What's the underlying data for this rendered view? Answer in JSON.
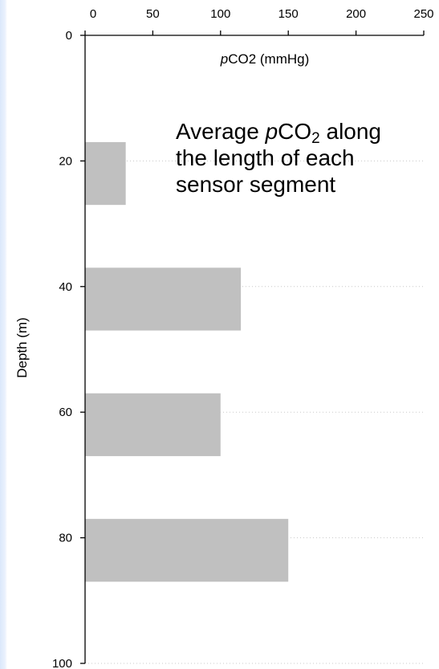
{
  "chart_data": {
    "type": "bar",
    "orientation": "horizontal",
    "xlabel": "pCO2 (mmHg)",
    "xlabel_parts": {
      "italic": "p",
      "rest": "CO2 (mmHg)"
    },
    "ylabel": "Depth (m)",
    "xlim": [
      0,
      250
    ],
    "ylim": [
      0,
      100
    ],
    "y_inverted": true,
    "x_axis_position": "top",
    "x_ticks": [
      0,
      50,
      100,
      150,
      200,
      250
    ],
    "y_ticks": [
      0,
      20,
      40,
      60,
      80,
      100
    ],
    "grid": "horizontal dotted",
    "bar_color": "#c0c0c0",
    "bars": [
      {
        "depth_from": 17,
        "depth_to": 27,
        "value": 30
      },
      {
        "depth_from": 37,
        "depth_to": 47,
        "value": 115
      },
      {
        "depth_from": 57,
        "depth_to": 67,
        "value": 100
      },
      {
        "depth_from": 77,
        "depth_to": 87,
        "value": 150
      }
    ],
    "annotation": {
      "lines": [
        {
          "pre": "Average ",
          "italic": "p",
          "mid": "CO",
          "sub": "2",
          "post": " along"
        },
        {
          "pre": "the length of each"
        },
        {
          "pre": "sensor segment"
        }
      ]
    }
  }
}
